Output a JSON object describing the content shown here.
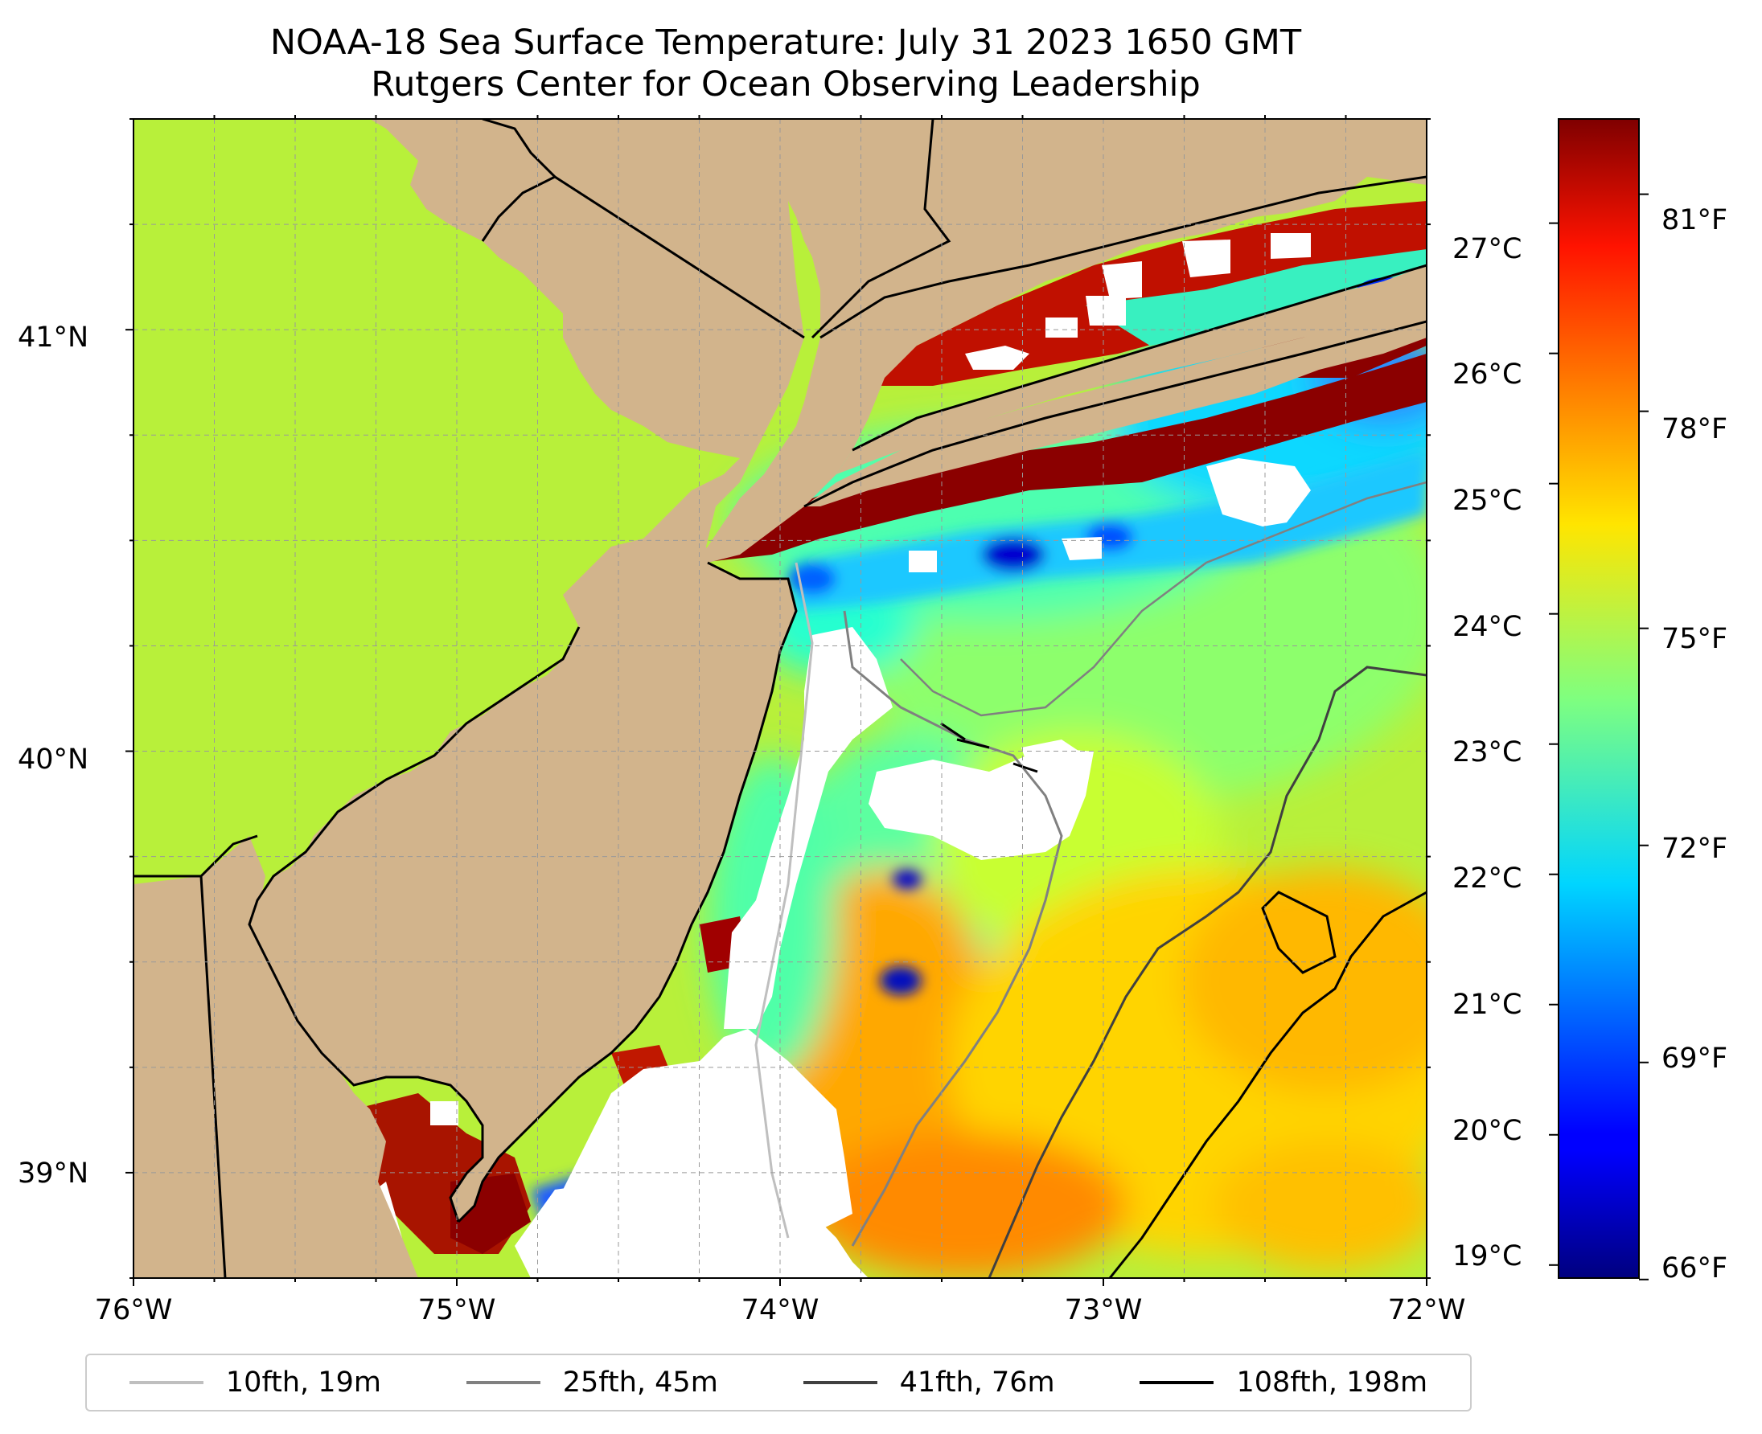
{
  "title": {
    "line1": "NOAA-18 Sea Surface Temperature: July 31 2023 1650 GMT",
    "line2": "Rutgers Center for Ocean Observing Leadership"
  },
  "map": {
    "land_color": "#d2b48c",
    "no_data_color": "#ffffff",
    "extent": {
      "lon_min": -76.0,
      "lon_max": -72.0,
      "lat_min": 38.75,
      "lat_max": 41.5
    },
    "lon_ticks": [
      {
        "value": -76,
        "label": "76°W"
      },
      {
        "value": -75,
        "label": "75°W"
      },
      {
        "value": -74,
        "label": "74°W"
      },
      {
        "value": -73,
        "label": "73°W"
      },
      {
        "value": -72,
        "label": "72°W"
      }
    ],
    "lat_ticks": [
      {
        "value": 41,
        "label": "41°N"
      },
      {
        "value": 40,
        "label": "40°N"
      },
      {
        "value": 39,
        "label": "39°N"
      }
    ]
  },
  "colorbar": {
    "colormap": "jet",
    "range_c": [
      18.9,
      27.8
    ],
    "celsius_ticks": [
      {
        "value": 27,
        "label": "27°C"
      },
      {
        "value": 26,
        "label": "26°C"
      },
      {
        "value": 25,
        "label": "25°C"
      },
      {
        "value": 24,
        "label": "24°C"
      },
      {
        "value": 23,
        "label": "23°C"
      },
      {
        "value": 22,
        "label": "22°C"
      },
      {
        "value": 21,
        "label": "21°C"
      },
      {
        "value": 20,
        "label": "20°C"
      },
      {
        "value": 19,
        "label": "19°C"
      }
    ],
    "fahrenheit_ticks": [
      {
        "value": 81,
        "label": "81°F"
      },
      {
        "value": 78,
        "label": "78°F"
      },
      {
        "value": 75,
        "label": "75°F"
      },
      {
        "value": 72,
        "label": "72°F"
      },
      {
        "value": 69,
        "label": "69°F"
      },
      {
        "value": 66,
        "label": "66°F"
      }
    ]
  },
  "legend": {
    "items": [
      {
        "label": "10fth, 19m",
        "color": "#bfbfbf"
      },
      {
        "label": "25fth, 45m",
        "color": "#808080"
      },
      {
        "label": "41fth, 76m",
        "color": "#404040"
      },
      {
        "label": "108fth, 198m",
        "color": "#000000"
      }
    ]
  }
}
